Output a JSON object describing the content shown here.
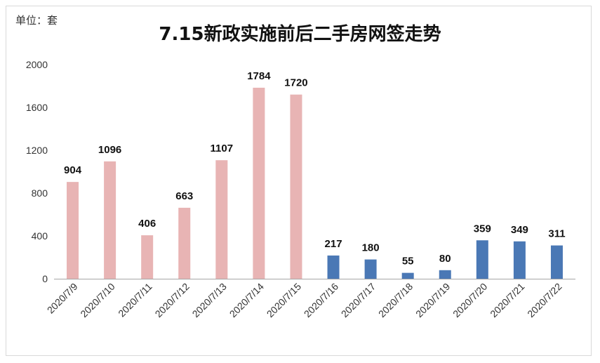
{
  "unit_label": "单位：套",
  "colors": {
    "before": "#e8b4b4",
    "after": "#4a78b5",
    "axis": "#a6a6a6"
  },
  "chart_data": {
    "type": "bar",
    "title": "7.15新政实施前后二手房网签走势",
    "xlabel": "",
    "ylabel": "",
    "ylim": [
      0,
      2000
    ],
    "yticks": [
      0,
      400,
      800,
      1200,
      1600,
      2000
    ],
    "grid": false,
    "categories": [
      "2020/7/9",
      "2020/7/10",
      "2020/7/11",
      "2020/7/12",
      "2020/7/13",
      "2020/7/14",
      "2020/7/15",
      "2020/7/16",
      "2020/7/17",
      "2020/7/18",
      "2020/7/19",
      "2020/7/20",
      "2020/7/21",
      "2020/7/22"
    ],
    "values": [
      904,
      1096,
      406,
      663,
      1107,
      1784,
      1720,
      217,
      180,
      55,
      80,
      359,
      349,
      311
    ],
    "bar_colors": [
      "before",
      "before",
      "before",
      "before",
      "before",
      "before",
      "before",
      "after",
      "after",
      "after",
      "after",
      "after",
      "after",
      "after"
    ]
  }
}
